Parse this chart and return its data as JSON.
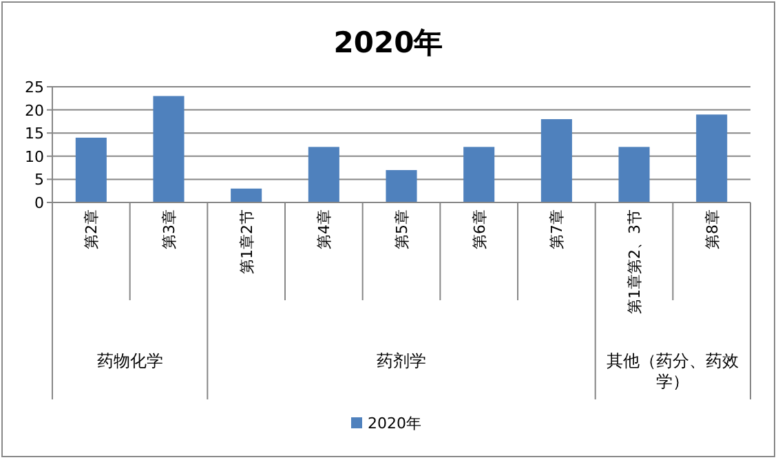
{
  "chart_data": {
    "type": "bar",
    "title": "2020年",
    "categories": [
      "第2章",
      "第3章",
      "第1章2节",
      "第4章",
      "第5章",
      "第6章",
      "第7章",
      "第1章第2、3节",
      "第8章"
    ],
    "series": [
      {
        "name": "2020年",
        "color": "#4f81bd",
        "values": [
          14,
          23,
          3,
          12,
          7,
          12,
          18,
          12,
          19
        ]
      }
    ],
    "ylim": [
      0,
      25
    ],
    "yticks": [
      0,
      5,
      10,
      15,
      20,
      25
    ],
    "grid": "y",
    "legend": "bottom",
    "annotations": [
      "药物化学",
      "药剂学",
      "其他（药分、药效学）"
    ]
  }
}
